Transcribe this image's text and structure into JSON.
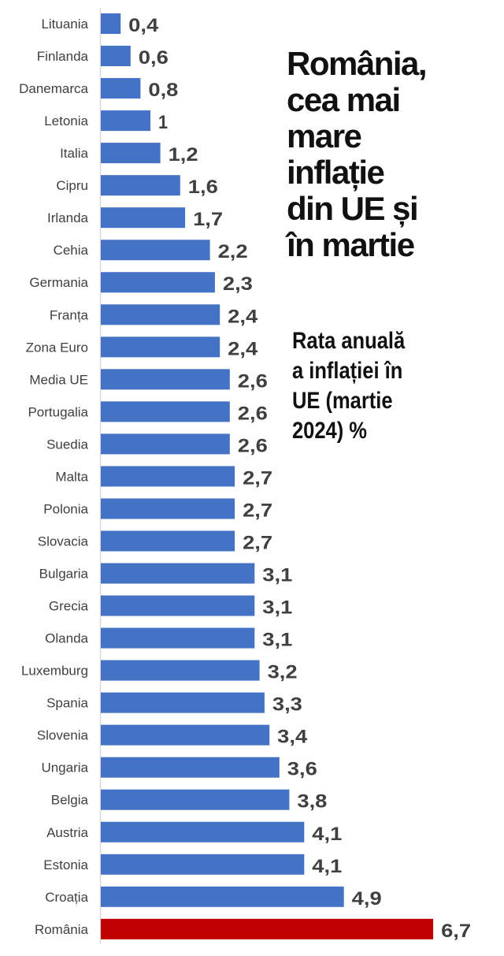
{
  "chart_data": {
    "type": "bar",
    "orientation": "horizontal",
    "title": "România, cea mai mare inflație din UE și în martie",
    "subtitle": "Rata anuală a inflației în UE (martie 2024) %",
    "xlabel": "",
    "ylabel": "",
    "xlim": [
      0,
      7
    ],
    "grid": false,
    "categories": [
      "Lituania",
      "Finlanda",
      "Danemarca",
      "Letonia",
      "Italia",
      "Cipru",
      "Irlanda",
      "Cehia",
      "Germania",
      "Franța",
      "Zona Euro",
      "Media UE",
      "Portugalia",
      "Suedia",
      "Malta",
      "Polonia",
      "Slovacia",
      "Bulgaria",
      "Grecia",
      "Olanda",
      "Luxemburg",
      "Spania",
      "Slovenia",
      "Ungaria",
      "Belgia",
      "Austria",
      "Estonia",
      "Croația",
      "România"
    ],
    "values": [
      0.4,
      0.6,
      0.8,
      1,
      1.2,
      1.6,
      1.7,
      2.2,
      2.3,
      2.4,
      2.4,
      2.6,
      2.6,
      2.6,
      2.7,
      2.7,
      2.7,
      3.1,
      3.1,
      3.1,
      3.2,
      3.3,
      3.4,
      3.6,
      3.8,
      4.1,
      4.1,
      4.9,
      6.7
    ],
    "value_labels": [
      "0,4",
      "0,6",
      "0,8",
      "1",
      "1,2",
      "1,6",
      "1,7",
      "2,2",
      "2,3",
      "2,4",
      "2,4",
      "2,6",
      "2,6",
      "2,6",
      "2,7",
      "2,7",
      "2,7",
      "3,1",
      "3,1",
      "3,1",
      "3,2",
      "3,3",
      "3,4",
      "3,6",
      "3,8",
      "4,1",
      "4,1",
      "4,9",
      "6,7"
    ],
    "highlight": "România",
    "colors": {
      "bar": "#4472C4",
      "highlight": "#C00000",
      "axis": "#D9D9D9",
      "text": "#404040"
    }
  },
  "title_lines": [
    "România,",
    "cea mai",
    "mare",
    "inflație",
    "din UE și",
    "în martie"
  ],
  "subtitle_lines": [
    "Rata anuală",
    "a inflației în",
    "UE (martie",
    "2024) %"
  ]
}
